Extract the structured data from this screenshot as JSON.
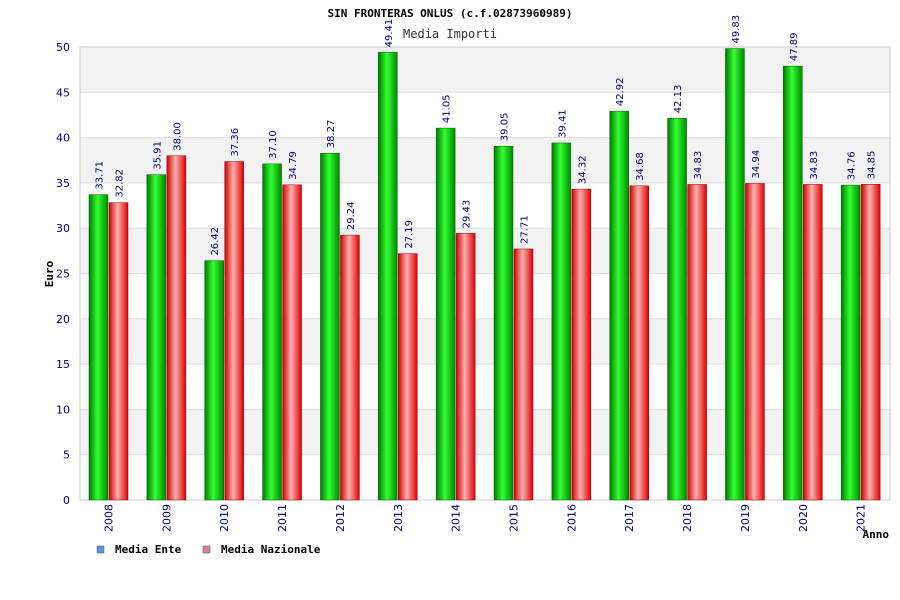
{
  "chart_data": {
    "type": "bar",
    "title": "SIN FRONTERAS ONLUS (c.f.02873960989)",
    "subtitle": "Media Importi",
    "xlabel": "Anno",
    "ylabel": "Euro",
    "ylim": [
      0,
      50
    ],
    "yticks": [
      "0",
      "5",
      "10",
      "15",
      "20",
      "25",
      "30",
      "35",
      "40",
      "45",
      "50"
    ],
    "grid": true,
    "legend_position": "bottom-left",
    "categories": [
      "2008",
      "2009",
      "2010",
      "2011",
      "2012",
      "2013",
      "2014",
      "2015",
      "2016",
      "2017",
      "2018",
      "2019",
      "2020",
      "2021"
    ],
    "series": [
      {
        "name": "Media Ente",
        "color": "#00c000",
        "legend_color": "#5b9bd5",
        "values": [
          33.71,
          35.91,
          26.42,
          37.1,
          38.27,
          49.41,
          41.05,
          39.05,
          39.41,
          42.92,
          42.13,
          49.83,
          47.89,
          34.76
        ],
        "labels": [
          "33.71",
          "35.91",
          "26.42",
          "37.10",
          "38.27",
          "49.41",
          "41.05",
          "39.05",
          "39.41",
          "42.92",
          "42.13",
          "49.83",
          "47.89",
          "34.76"
        ]
      },
      {
        "name": "Media Nazionale",
        "color": "#e00000",
        "legend_color": "#d97ca6",
        "values": [
          32.82,
          38.0,
          37.36,
          34.79,
          29.24,
          27.19,
          29.43,
          27.71,
          34.32,
          34.68,
          34.83,
          34.94,
          34.83,
          34.85
        ],
        "labels": [
          "32.82",
          "38.00",
          "37.36",
          "34.79",
          "29.24",
          "27.19",
          "29.43",
          "27.71",
          "34.32",
          "34.68",
          "34.83",
          "34.94",
          "34.83",
          "34.85"
        ]
      }
    ]
  }
}
